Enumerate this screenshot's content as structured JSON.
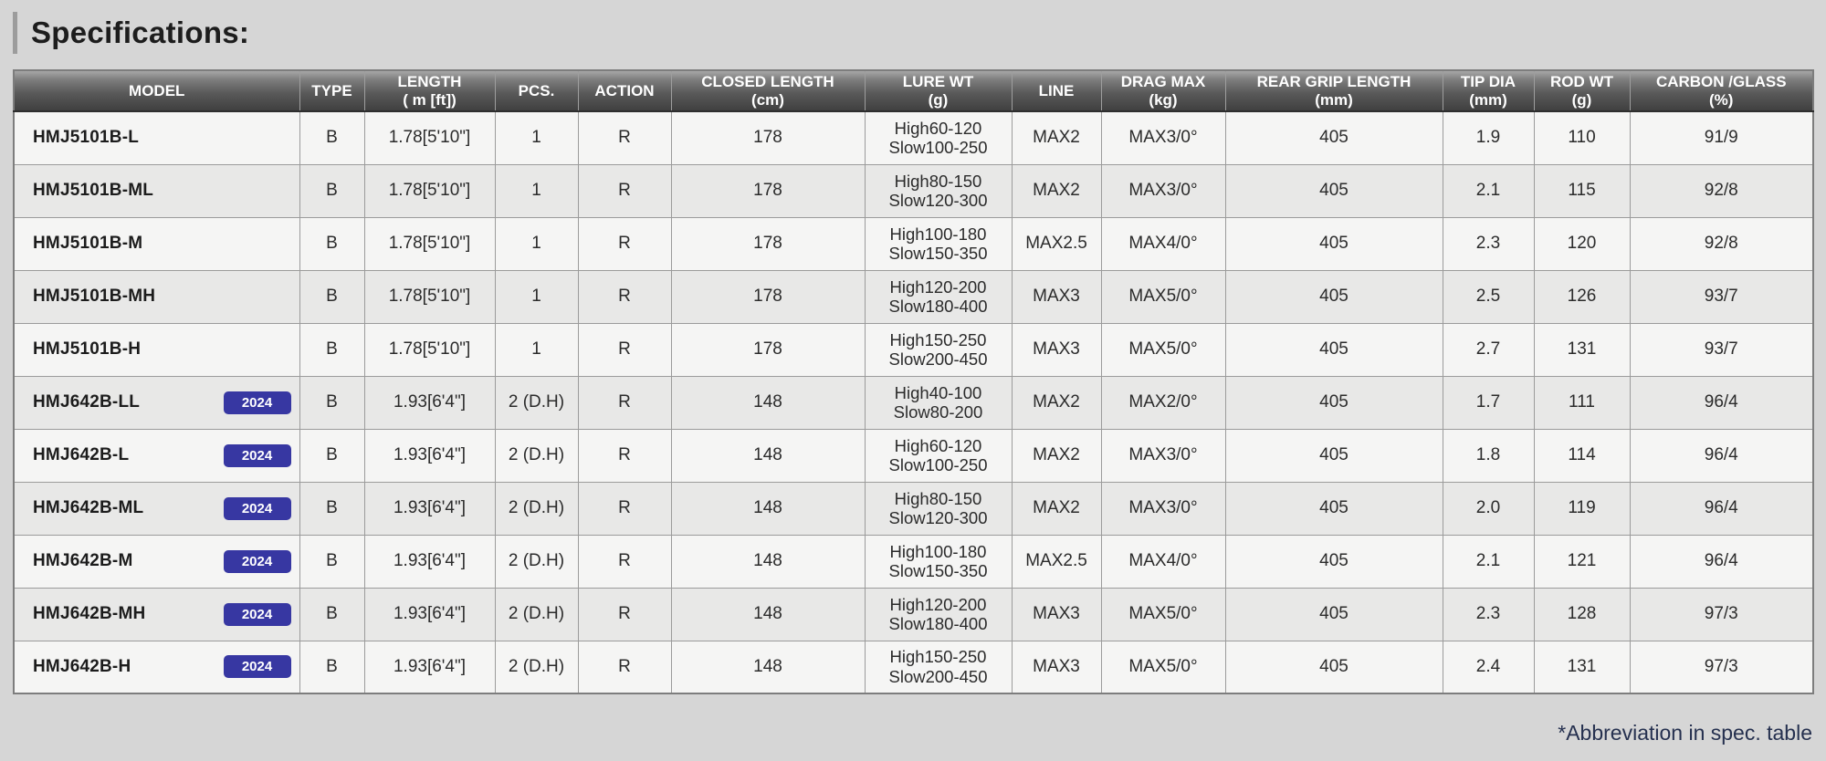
{
  "page": {
    "title": "Specifications:",
    "footnote": "*Abbreviation in spec. table"
  },
  "colors": {
    "badge_background": "#3737a2",
    "badge_text": "#ffffff",
    "footnote_text": "#25304f",
    "header_text": "#ffffff"
  },
  "table": {
    "columns": [
      {
        "label": "MODEL",
        "sub": ""
      },
      {
        "label": "TYPE",
        "sub": ""
      },
      {
        "label": "LENGTH",
        "sub": "( m [ft])"
      },
      {
        "label": "PCS.",
        "sub": ""
      },
      {
        "label": "ACTION",
        "sub": ""
      },
      {
        "label": "CLOSED LENGTH",
        "sub": "(cm)"
      },
      {
        "label": "LURE WT",
        "sub": "(g)"
      },
      {
        "label": "LINE",
        "sub": ""
      },
      {
        "label": "DRAG MAX",
        "sub": "(kg)"
      },
      {
        "label": "REAR GRIP LENGTH",
        "sub": "(mm)"
      },
      {
        "label": "TIP DIA",
        "sub": "(mm)"
      },
      {
        "label": "ROD WT",
        "sub": "(g)"
      },
      {
        "label": "CARBON /GLASS",
        "sub": "(%)"
      }
    ],
    "rows": [
      {
        "model": "HMJ5101B-L",
        "badge": "",
        "type": "B",
        "length": "1.78[5'10\"]",
        "pcs": "1",
        "action": "R",
        "closed_length": "178",
        "lure_high": "High60-120",
        "lure_slow": "Slow100-250",
        "line": "MAX2",
        "drag_max": "MAX3/0°",
        "rear_grip": "405",
        "tip_dia": "1.9",
        "rod_wt": "110",
        "carbon_glass": "91/9"
      },
      {
        "model": "HMJ5101B-ML",
        "badge": "",
        "type": "B",
        "length": "1.78[5'10\"]",
        "pcs": "1",
        "action": "R",
        "closed_length": "178",
        "lure_high": "High80-150",
        "lure_slow": "Slow120-300",
        "line": "MAX2",
        "drag_max": "MAX3/0°",
        "rear_grip": "405",
        "tip_dia": "2.1",
        "rod_wt": "115",
        "carbon_glass": "92/8"
      },
      {
        "model": "HMJ5101B-M",
        "badge": "",
        "type": "B",
        "length": "1.78[5'10\"]",
        "pcs": "1",
        "action": "R",
        "closed_length": "178",
        "lure_high": "High100-180",
        "lure_slow": "Slow150-350",
        "line": "MAX2.5",
        "drag_max": "MAX4/0°",
        "rear_grip": "405",
        "tip_dia": "2.3",
        "rod_wt": "120",
        "carbon_glass": "92/8"
      },
      {
        "model": "HMJ5101B-MH",
        "badge": "",
        "type": "B",
        "length": "1.78[5'10\"]",
        "pcs": "1",
        "action": "R",
        "closed_length": "178",
        "lure_high": "High120-200",
        "lure_slow": "Slow180-400",
        "line": "MAX3",
        "drag_max": "MAX5/0°",
        "rear_grip": "405",
        "tip_dia": "2.5",
        "rod_wt": "126",
        "carbon_glass": "93/7"
      },
      {
        "model": "HMJ5101B-H",
        "badge": "",
        "type": "B",
        "length": "1.78[5'10\"]",
        "pcs": "1",
        "action": "R",
        "closed_length": "178",
        "lure_high": "High150-250",
        "lure_slow": "Slow200-450",
        "line": "MAX3",
        "drag_max": "MAX5/0°",
        "rear_grip": "405",
        "tip_dia": "2.7",
        "rod_wt": "131",
        "carbon_glass": "93/7"
      },
      {
        "model": "HMJ642B-LL",
        "badge": "2024",
        "type": "B",
        "length": "1.93[6'4\"]",
        "pcs": "2 (D.H)",
        "action": "R",
        "closed_length": "148",
        "lure_high": "High40-100",
        "lure_slow": "Slow80-200",
        "line": "MAX2",
        "drag_max": "MAX2/0°",
        "rear_grip": "405",
        "tip_dia": "1.7",
        "rod_wt": "111",
        "carbon_glass": "96/4"
      },
      {
        "model": "HMJ642B-L",
        "badge": "2024",
        "type": "B",
        "length": "1.93[6'4\"]",
        "pcs": "2 (D.H)",
        "action": "R",
        "closed_length": "148",
        "lure_high": "High60-120",
        "lure_slow": "Slow100-250",
        "line": "MAX2",
        "drag_max": "MAX3/0°",
        "rear_grip": "405",
        "tip_dia": "1.8",
        "rod_wt": "114",
        "carbon_glass": "96/4"
      },
      {
        "model": "HMJ642B-ML",
        "badge": "2024",
        "type": "B",
        "length": "1.93[6'4\"]",
        "pcs": "2 (D.H)",
        "action": "R",
        "closed_length": "148",
        "lure_high": "High80-150",
        "lure_slow": "Slow120-300",
        "line": "MAX2",
        "drag_max": "MAX3/0°",
        "rear_grip": "405",
        "tip_dia": "2.0",
        "rod_wt": "119",
        "carbon_glass": "96/4"
      },
      {
        "model": "HMJ642B-M",
        "badge": "2024",
        "type": "B",
        "length": "1.93[6'4\"]",
        "pcs": "2 (D.H)",
        "action": "R",
        "closed_length": "148",
        "lure_high": "High100-180",
        "lure_slow": "Slow150-350",
        "line": "MAX2.5",
        "drag_max": "MAX4/0°",
        "rear_grip": "405",
        "tip_dia": "2.1",
        "rod_wt": "121",
        "carbon_glass": "96/4"
      },
      {
        "model": "HMJ642B-MH",
        "badge": "2024",
        "type": "B",
        "length": "1.93[6'4\"]",
        "pcs": "2 (D.H)",
        "action": "R",
        "closed_length": "148",
        "lure_high": "High120-200",
        "lure_slow": "Slow180-400",
        "line": "MAX3",
        "drag_max": "MAX5/0°",
        "rear_grip": "405",
        "tip_dia": "2.3",
        "rod_wt": "128",
        "carbon_glass": "97/3"
      },
      {
        "model": "HMJ642B-H",
        "badge": "2024",
        "type": "B",
        "length": "1.93[6'4\"]",
        "pcs": "2 (D.H)",
        "action": "R",
        "closed_length": "148",
        "lure_high": "High150-250",
        "lure_slow": "Slow200-450",
        "line": "MAX3",
        "drag_max": "MAX5/0°",
        "rear_grip": "405",
        "tip_dia": "2.4",
        "rod_wt": "131",
        "carbon_glass": "97/3"
      }
    ]
  }
}
